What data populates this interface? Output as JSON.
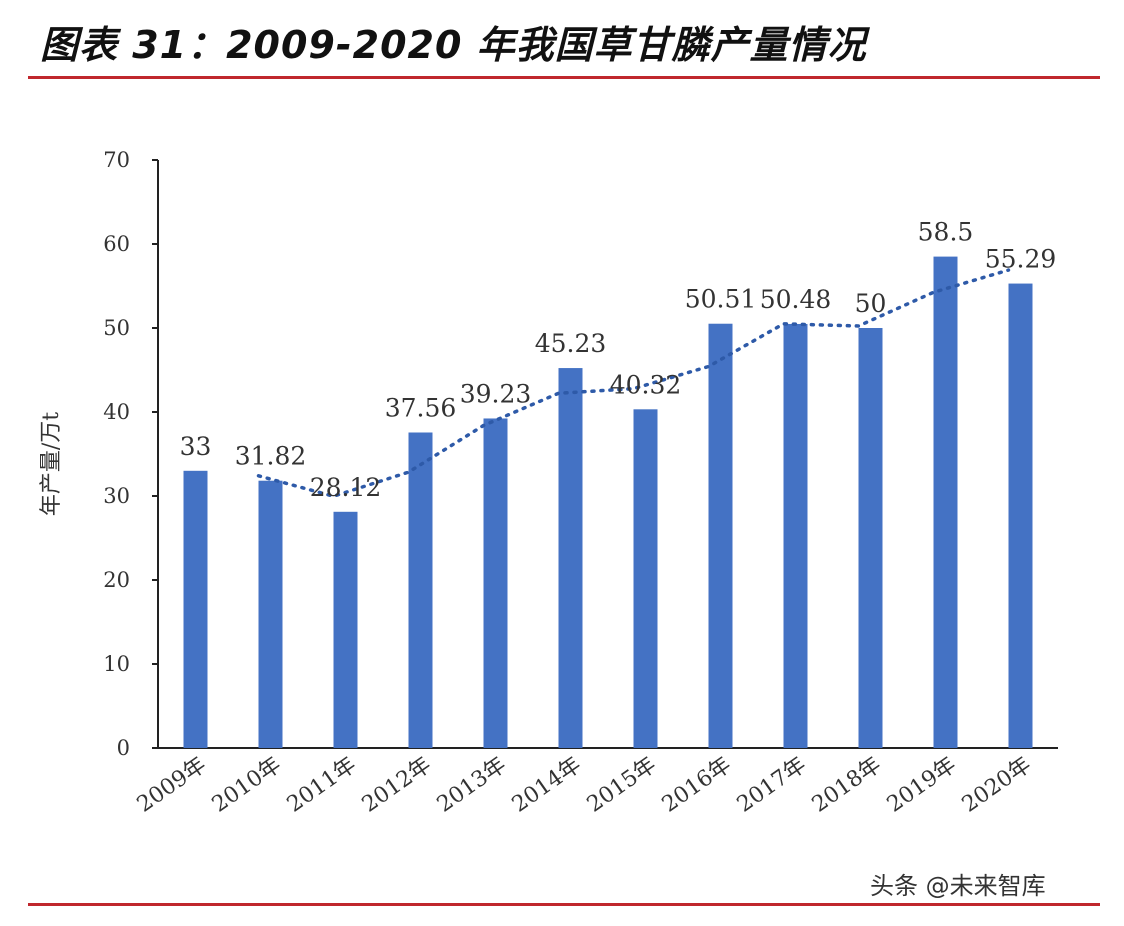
{
  "page": {
    "title": "图表 31：2009-2020 年我国草甘膦产量情况",
    "watermark": "头条 @未来智库"
  },
  "colors": {
    "bar": "#4472c4",
    "trend": "#2e5aa8",
    "axis": "#222222",
    "rule": "#c0272d"
  },
  "chart_data": {
    "type": "bar",
    "title": "",
    "xlabel": "",
    "ylabel": "年产量/万t",
    "ylim": [
      0,
      70
    ],
    "yticks": [
      0,
      10,
      20,
      30,
      40,
      50,
      60,
      70
    ],
    "categories": [
      "2009年",
      "2010年",
      "2011年",
      "2012年",
      "2013年",
      "2014年",
      "2015年",
      "2016年",
      "2017年",
      "2018年",
      "2019年",
      "2020年"
    ],
    "series": [
      {
        "values": [
          33,
          31.82,
          28.12,
          37.56,
          39.23,
          45.23,
          40.32,
          50.51,
          50.48,
          50,
          58.5,
          55.29
        ],
        "labels": [
          "33",
          "31.82",
          "28.12",
          "37.56",
          "39.23",
          "45.23",
          "40.32",
          "50.51",
          "50.48",
          "50",
          "58.5",
          "55.29"
        ]
      }
    ],
    "trendline": "moving-average",
    "grid": false,
    "legend": "none"
  }
}
